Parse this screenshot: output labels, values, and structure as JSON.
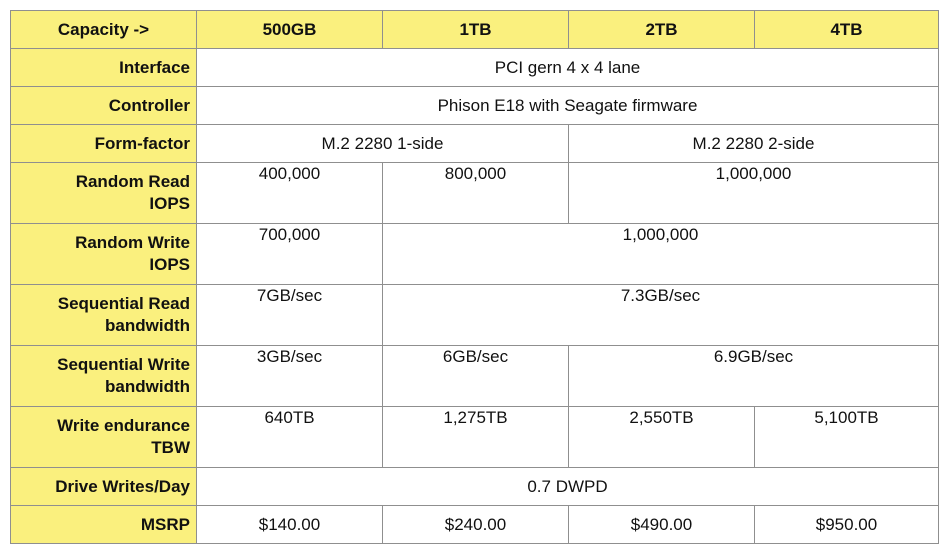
{
  "header": {
    "label": "Capacity ->",
    "capacities": [
      "500GB",
      "1TB",
      "2TB",
      "4TB"
    ]
  },
  "rows": {
    "interface": {
      "label": "Interface",
      "value": "PCI gern 4 x 4 lane"
    },
    "controller": {
      "label": "Controller",
      "value": "Phison E18 with Seagate firmware"
    },
    "form_factor": {
      "label": "Form-factor",
      "v1": "M.2 2280 1-side",
      "v2": "M.2 2280 2-side"
    },
    "random_read": {
      "label1": "Random Read",
      "label2": "IOPS",
      "v500": "400,000",
      "v1tb": "800,000",
      "v2_4tb": "1,000,000"
    },
    "random_write": {
      "label1": "Random Write",
      "label2": "IOPS",
      "v500": "700,000",
      "v1_4tb": "1,000,000"
    },
    "seq_read": {
      "label1": "Sequential Read",
      "label2": "bandwidth",
      "v500": "7GB/sec",
      "v1_4tb": "7.3GB/sec"
    },
    "seq_write": {
      "label1": "Sequential Write",
      "label2": "bandwidth",
      "v500": "3GB/sec",
      "v1tb": "6GB/sec",
      "v2_4tb": "6.9GB/sec"
    },
    "endurance": {
      "label1": "Write endurance",
      "label2": "TBW",
      "values": [
        "640TB",
        "1,275TB",
        "2,550TB",
        "5,100TB"
      ]
    },
    "dwpd": {
      "label": "Drive Writes/Day",
      "value": "0.7 DWPD"
    },
    "msrp": {
      "label": "MSRP",
      "values": [
        "$140.00",
        "$240.00",
        "$490.00",
        "$950.00"
      ]
    }
  }
}
